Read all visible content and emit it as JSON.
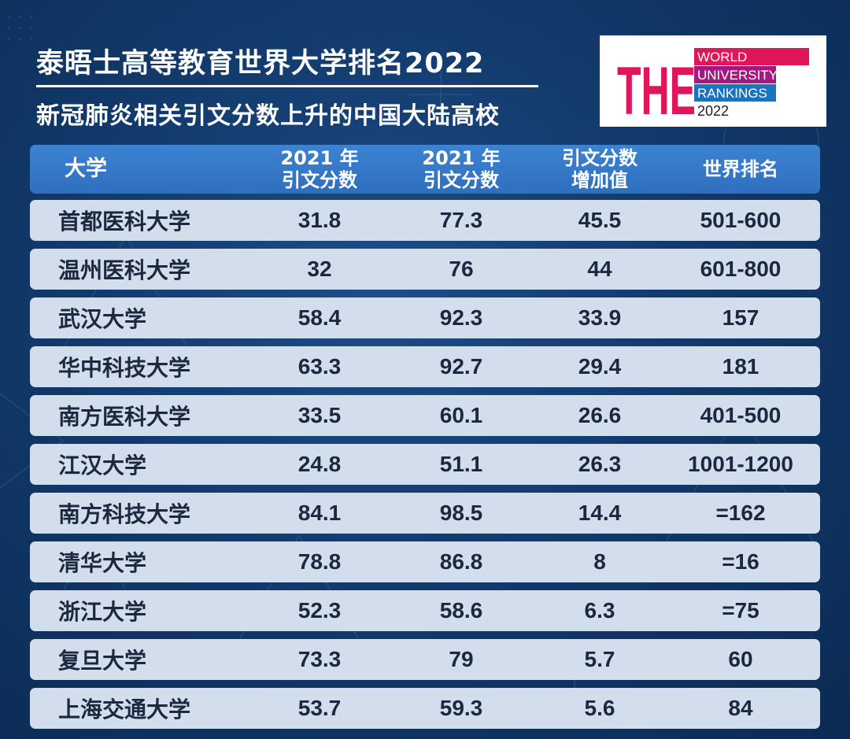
{
  "title": "泰晤士高等教育世界大学排名2022",
  "subtitle": "新冠肺炎相关引文分数上升的中国大陆高校",
  "logo": {
    "letters": "THE",
    "line1": "WORLD",
    "line2": "UNIVERSITY",
    "line3": "RANKINGS",
    "year": "2022",
    "colors": {
      "pink": "#e0155a",
      "magenta": "#a4197f",
      "purple": "#5a2d91",
      "blue": "#1d72bd",
      "dark": "#222222"
    }
  },
  "colors": {
    "background": "#123a6c",
    "header_row": "#3579c8",
    "body_row": "#d3deec",
    "body_text": "#1b2940"
  },
  "table": {
    "headers": [
      {
        "line1": "大学",
        "line2": ""
      },
      {
        "line1": "2021 年",
        "line2": "引文分数"
      },
      {
        "line1": "2021 年",
        "line2": "引文分数"
      },
      {
        "line1": "引文分数",
        "line2": "增加值"
      },
      {
        "line1": "世界排名",
        "line2": ""
      }
    ],
    "rows": [
      [
        "首都医科大学",
        "31.8",
        "77.3",
        "45.5",
        "501-600"
      ],
      [
        "温州医科大学",
        "32",
        "76",
        "44",
        "601-800"
      ],
      [
        "武汉大学",
        "58.4",
        "92.3",
        "33.9",
        "157"
      ],
      [
        "华中科技大学",
        "63.3",
        "92.7",
        "29.4",
        "181"
      ],
      [
        "南方医科大学",
        "33.5",
        "60.1",
        "26.6",
        "401-500"
      ],
      [
        "江汉大学",
        "24.8",
        "51.1",
        "26.3",
        "1001-1200"
      ],
      [
        "南方科技大学",
        "84.1",
        "98.5",
        "14.4",
        "=162"
      ],
      [
        "清华大学",
        "78.8",
        "86.8",
        "8",
        "=16"
      ],
      [
        "浙江大学",
        "52.3",
        "58.6",
        "6.3",
        "=75"
      ],
      [
        "复旦大学",
        "73.3",
        "79",
        "5.7",
        "60"
      ],
      [
        "上海交通大学",
        "53.7",
        "59.3",
        "5.6",
        "84"
      ]
    ]
  }
}
